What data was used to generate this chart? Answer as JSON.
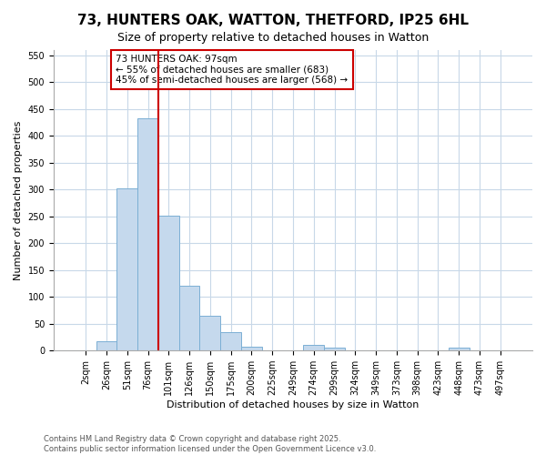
{
  "title": "73, HUNTERS OAK, WATTON, THETFORD, IP25 6HL",
  "subtitle": "Size of property relative to detached houses in Watton",
  "xlabel": "Distribution of detached houses by size in Watton",
  "ylabel": "Number of detached properties",
  "bar_labels": [
    "2sqm",
    "26sqm",
    "51sqm",
    "76sqm",
    "101sqm",
    "126sqm",
    "150sqm",
    "175sqm",
    "200sqm",
    "225sqm",
    "249sqm",
    "274sqm",
    "299sqm",
    "324sqm",
    "349sqm",
    "373sqm",
    "398sqm",
    "423sqm",
    "448sqm",
    "473sqm",
    "497sqm"
  ],
  "bar_values": [
    0,
    18,
    303,
    432,
    252,
    120,
    65,
    35,
    8,
    0,
    0,
    11,
    5,
    0,
    0,
    0,
    0,
    0,
    5,
    0,
    0
  ],
  "bar_color": "#c5d9ed",
  "bar_edgecolor": "#7bafd4",
  "vline_color": "#cc0000",
  "vline_x_index": 4,
  "annotation_text": "73 HUNTERS OAK: 97sqm\n← 55% of detached houses are smaller (683)\n45% of semi-detached houses are larger (568) →",
  "annotation_box_edgecolor": "#cc0000",
  "footer_line1": "Contains HM Land Registry data © Crown copyright and database right 2025.",
  "footer_line2": "Contains public sector information licensed under the Open Government Licence v3.0.",
  "ylim": [
    0,
    560
  ],
  "yticks": [
    0,
    50,
    100,
    150,
    200,
    250,
    300,
    350,
    400,
    450,
    500,
    550
  ],
  "bg_color": "#ffffff",
  "plot_bg_color": "#ffffff",
  "grid_color": "#c8d8e8",
  "title_fontsize": 11,
  "subtitle_fontsize": 9,
  "axis_label_fontsize": 8,
  "tick_fontsize": 7,
  "annotation_fontsize": 7.5,
  "footer_fontsize": 6
}
